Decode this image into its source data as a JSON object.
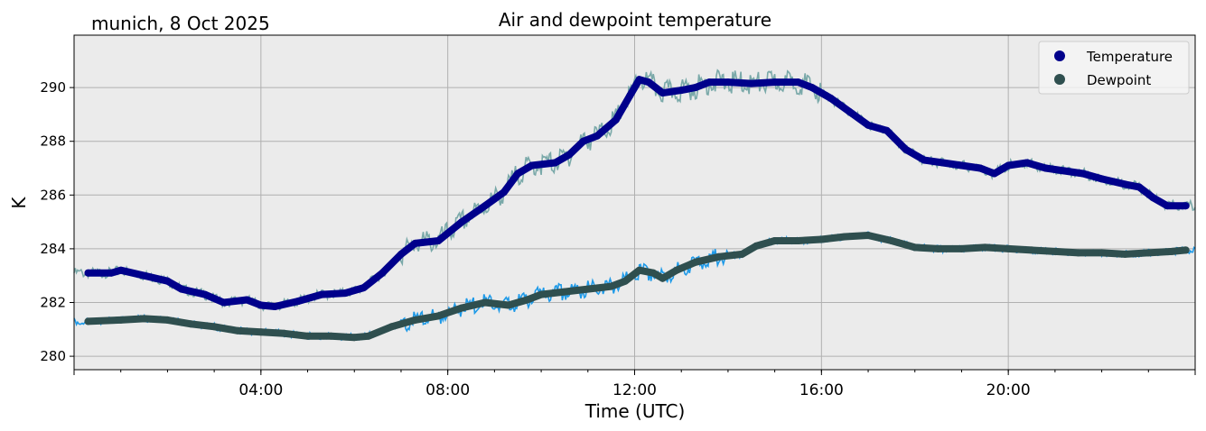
{
  "chart_data": {
    "type": "line",
    "title": "Air and dewpoint temperature",
    "subtitle": "munich, 8 Oct 2025",
    "xlabel": "Time (UTC)",
    "ylabel": "K",
    "x_unit": "hours (UTC)",
    "xlim": [
      0.0,
      24.0
    ],
    "ylim": [
      279.5,
      291.95
    ],
    "x_ticks": [
      {
        "value": 4,
        "label": "04:00"
      },
      {
        "value": 8,
        "label": "08:00"
      },
      {
        "value": 12,
        "label": "12:00"
      },
      {
        "value": 16,
        "label": "16:00"
      },
      {
        "value": 20,
        "label": "20:00"
      }
    ],
    "y_ticks": [
      280,
      282,
      284,
      286,
      288,
      290
    ],
    "grid": true,
    "legend_position": "top-right",
    "background_color": "#ebebeb",
    "series": [
      {
        "name": "Temperature",
        "marker_color": "#00008b",
        "raw_color": "#7aa9a9",
        "points": [
          [
            0.3,
            283.1
          ],
          [
            0.8,
            283.1
          ],
          [
            1.0,
            283.2
          ],
          [
            1.5,
            283.0
          ],
          [
            2.0,
            282.8
          ],
          [
            2.3,
            282.5
          ],
          [
            2.8,
            282.3
          ],
          [
            3.2,
            282.0
          ],
          [
            3.7,
            282.1
          ],
          [
            4.0,
            281.9
          ],
          [
            4.3,
            281.85
          ],
          [
            4.8,
            282.05
          ],
          [
            5.3,
            282.3
          ],
          [
            5.8,
            282.35
          ],
          [
            6.2,
            282.55
          ],
          [
            6.6,
            283.1
          ],
          [
            7.0,
            283.8
          ],
          [
            7.3,
            284.2
          ],
          [
            7.8,
            284.3
          ],
          [
            8.3,
            285.0
          ],
          [
            8.8,
            285.6
          ],
          [
            9.2,
            286.1
          ],
          [
            9.5,
            286.8
          ],
          [
            9.8,
            287.1
          ],
          [
            10.3,
            287.2
          ],
          [
            10.6,
            287.5
          ],
          [
            10.9,
            288.0
          ],
          [
            11.2,
            288.2
          ],
          [
            11.6,
            288.8
          ],
          [
            11.9,
            289.7
          ],
          [
            12.1,
            290.3
          ],
          [
            12.3,
            290.2
          ],
          [
            12.6,
            289.8
          ],
          [
            13.0,
            289.9
          ],
          [
            13.3,
            290.0
          ],
          [
            13.6,
            290.2
          ],
          [
            14.0,
            290.2
          ],
          [
            14.5,
            290.15
          ],
          [
            15.0,
            290.2
          ],
          [
            15.5,
            290.2
          ],
          [
            15.8,
            290.0
          ],
          [
            16.2,
            289.6
          ],
          [
            16.6,
            289.1
          ],
          [
            17.0,
            288.6
          ],
          [
            17.4,
            288.4
          ],
          [
            17.8,
            287.7
          ],
          [
            18.2,
            287.3
          ],
          [
            18.6,
            287.2
          ],
          [
            19.0,
            287.1
          ],
          [
            19.4,
            287.0
          ],
          [
            19.7,
            286.8
          ],
          [
            20.0,
            287.1
          ],
          [
            20.4,
            287.2
          ],
          [
            20.8,
            287.0
          ],
          [
            21.2,
            286.9
          ],
          [
            21.6,
            286.8
          ],
          [
            22.0,
            286.6
          ],
          [
            22.5,
            286.4
          ],
          [
            22.8,
            286.3
          ],
          [
            23.1,
            285.9
          ],
          [
            23.4,
            285.6
          ],
          [
            23.8,
            285.6
          ]
        ]
      },
      {
        "name": "Dewpoint",
        "marker_color": "#2f4f4f",
        "raw_color": "#1e9ae8",
        "points": [
          [
            0.3,
            281.3
          ],
          [
            1.0,
            281.35
          ],
          [
            1.5,
            281.4
          ],
          [
            2.0,
            281.35
          ],
          [
            2.5,
            281.2
          ],
          [
            3.0,
            281.1
          ],
          [
            3.5,
            280.95
          ],
          [
            4.0,
            280.9
          ],
          [
            4.5,
            280.85
          ],
          [
            5.0,
            280.75
          ],
          [
            5.5,
            280.75
          ],
          [
            6.0,
            280.7
          ],
          [
            6.3,
            280.75
          ],
          [
            6.8,
            281.1
          ],
          [
            7.3,
            281.35
          ],
          [
            7.8,
            281.5
          ],
          [
            8.3,
            281.8
          ],
          [
            8.8,
            282.0
          ],
          [
            9.3,
            281.9
          ],
          [
            9.7,
            282.1
          ],
          [
            10.0,
            282.3
          ],
          [
            10.5,
            282.4
          ],
          [
            11.0,
            282.5
          ],
          [
            11.5,
            282.6
          ],
          [
            11.8,
            282.8
          ],
          [
            12.1,
            283.2
          ],
          [
            12.4,
            283.1
          ],
          [
            12.6,
            282.9
          ],
          [
            12.9,
            283.2
          ],
          [
            13.3,
            283.5
          ],
          [
            13.8,
            283.7
          ],
          [
            14.3,
            283.8
          ],
          [
            14.6,
            284.1
          ],
          [
            15.0,
            284.3
          ],
          [
            15.5,
            284.3
          ],
          [
            16.0,
            284.35
          ],
          [
            16.5,
            284.45
          ],
          [
            17.0,
            284.5
          ],
          [
            17.5,
            284.3
          ],
          [
            18.0,
            284.05
          ],
          [
            18.5,
            284.0
          ],
          [
            19.0,
            284.0
          ],
          [
            19.5,
            284.05
          ],
          [
            20.0,
            284.0
          ],
          [
            20.5,
            283.95
          ],
          [
            21.0,
            283.9
          ],
          [
            21.5,
            283.85
          ],
          [
            22.0,
            283.85
          ],
          [
            22.5,
            283.8
          ],
          [
            23.0,
            283.85
          ],
          [
            23.5,
            283.9
          ],
          [
            23.8,
            283.95
          ]
        ]
      }
    ]
  }
}
